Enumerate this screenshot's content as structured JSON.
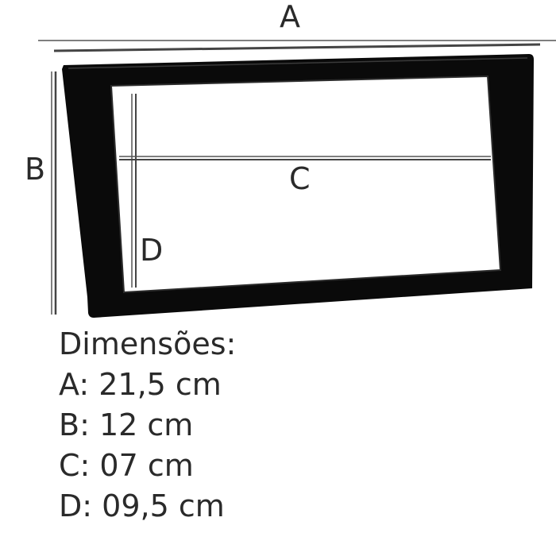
{
  "labels": {
    "a": "A",
    "b": "B",
    "c": "C",
    "d": "D"
  },
  "specs": {
    "title": "Dimensões:",
    "lines": [
      "A: 21,5 cm",
      "B: 12 cm",
      "C: 07 cm",
      "D: 09,5 cm"
    ]
  },
  "colors": {
    "frame": "#0a0a0a",
    "frame_inner_edge": "#2b2b2b",
    "measure_line": "#555555",
    "text": "#2a2a2a"
  }
}
